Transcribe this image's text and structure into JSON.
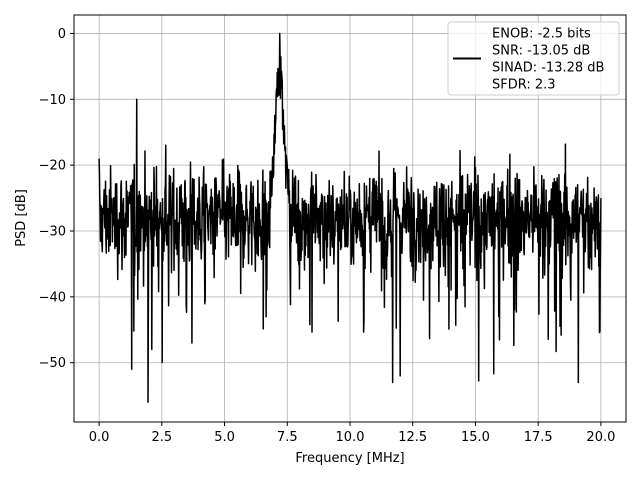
{
  "chart_data": {
    "type": "line",
    "xlabel": "Frequency [MHz]",
    "ylabel": "PSD [dB]",
    "xlim": [
      -1.0,
      21.0
    ],
    "ylim": [
      -59.0,
      2.8
    ],
    "x_ticks": [
      0.0,
      2.5,
      5.0,
      7.5,
      10.0,
      12.5,
      15.0,
      17.5,
      20.0
    ],
    "x_tick_labels": [
      "0.0",
      "2.5",
      "5.0",
      "7.5",
      "10.0",
      "12.5",
      "15.0",
      "17.5",
      "20.0"
    ],
    "y_ticks": [
      0,
      -10,
      -20,
      -30,
      -40,
      -50
    ],
    "y_tick_labels": [
      "0",
      "−10",
      "−20",
      "−30",
      "−40",
      "−50"
    ],
    "grid": true,
    "legend_position": "top-right",
    "legend_entries": [
      "ENOB: -2.5 bits",
      "SNR: -13.05 dB",
      "SINAD: -13.28 dB",
      "SFDR: 2.3"
    ],
    "series": [
      {
        "color": "#000000",
        "x_range": [
          0.0,
          20.0
        ],
        "noise_floor_db": -28,
        "min_db": -56,
        "features": [
          {
            "x": 0.0,
            "y": -19
          },
          {
            "x": 1.5,
            "y": -10
          },
          {
            "x": 1.3,
            "y": -51
          },
          {
            "x": 1.95,
            "y": -56
          },
          {
            "x": 2.1,
            "y": -48
          },
          {
            "x": 3.7,
            "y": -47
          },
          {
            "x": 7.2,
            "y": 0
          },
          {
            "x": 11.7,
            "y": -53
          },
          {
            "x": 12.0,
            "y": -52
          },
          {
            "x": 19.1,
            "y": -53
          },
          {
            "x": 20.0,
            "y": -25
          }
        ]
      }
    ]
  }
}
